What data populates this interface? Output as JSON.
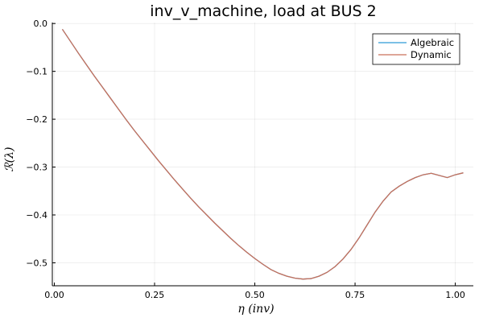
{
  "chart_data": {
    "type": "line",
    "title": "inv_v_machine, load at BUS 2",
    "xlabel": "η (inv)",
    "ylabel": "ℛ(λ)",
    "xlim": [
      -0.005,
      1.045
    ],
    "ylim": [
      -0.548,
      0.002
    ],
    "xticks": [
      0.0,
      0.25,
      0.5,
      0.75,
      1.0
    ],
    "xtick_labels": [
      "0.00",
      "0.25",
      "0.50",
      "0.75",
      "1.00"
    ],
    "yticks": [
      0.0,
      -0.1,
      -0.2,
      -0.3,
      -0.4,
      -0.5
    ],
    "ytick_labels": [
      "0.0",
      "−0.1",
      "−0.2",
      "−0.3",
      "−0.4",
      "−0.5"
    ],
    "grid": true,
    "legend_position": "top-right",
    "x": [
      0.02,
      0.04,
      0.06,
      0.08,
      0.1,
      0.12,
      0.14,
      0.16,
      0.18,
      0.2,
      0.22,
      0.24,
      0.26,
      0.28,
      0.3,
      0.32,
      0.34,
      0.36,
      0.38,
      0.4,
      0.42,
      0.44,
      0.46,
      0.48,
      0.5,
      0.52,
      0.54,
      0.56,
      0.58,
      0.6,
      0.62,
      0.64,
      0.66,
      0.68,
      0.7,
      0.72,
      0.74,
      0.76,
      0.78,
      0.8,
      0.82,
      0.84,
      0.86,
      0.88,
      0.9,
      0.92,
      0.94,
      0.96,
      0.98,
      1.0,
      1.02
    ],
    "series": [
      {
        "name": "Algebraic",
        "color": "#2f9ad8",
        "values": [
          -0.012,
          -0.037,
          -0.062,
          -0.086,
          -0.11,
          -0.133,
          -0.156,
          -0.179,
          -0.202,
          -0.224,
          -0.245,
          -0.266,
          -0.287,
          -0.307,
          -0.327,
          -0.346,
          -0.365,
          -0.383,
          -0.4,
          -0.417,
          -0.433,
          -0.449,
          -0.464,
          -0.478,
          -0.491,
          -0.503,
          -0.514,
          -0.522,
          -0.528,
          -0.532,
          -0.534,
          -0.533,
          -0.528,
          -0.52,
          -0.508,
          -0.492,
          -0.472,
          -0.448,
          -0.421,
          -0.394,
          -0.371,
          -0.352,
          -0.34,
          -0.33,
          -0.322,
          -0.316,
          -0.313,
          -0.34,
          -0.322,
          -0.316,
          -0.312
        ]
      },
      {
        "name": "Dynamic",
        "color": "#c9705a",
        "values": [
          -0.012,
          -0.037,
          -0.062,
          -0.086,
          -0.11,
          -0.133,
          -0.156,
          -0.179,
          -0.202,
          -0.224,
          -0.245,
          -0.266,
          -0.287,
          -0.307,
          -0.327,
          -0.346,
          -0.365,
          -0.383,
          -0.4,
          -0.417,
          -0.433,
          -0.449,
          -0.464,
          -0.478,
          -0.491,
          -0.503,
          -0.514,
          -0.522,
          -0.528,
          -0.532,
          -0.534,
          -0.533,
          -0.528,
          -0.52,
          -0.508,
          -0.492,
          -0.472,
          -0.448,
          -0.421,
          -0.394,
          -0.371,
          -0.352,
          -0.34,
          -0.33,
          -0.322,
          -0.316,
          -0.313,
          -0.34,
          -0.322,
          -0.316,
          -0.312
        ]
      }
    ]
  }
}
